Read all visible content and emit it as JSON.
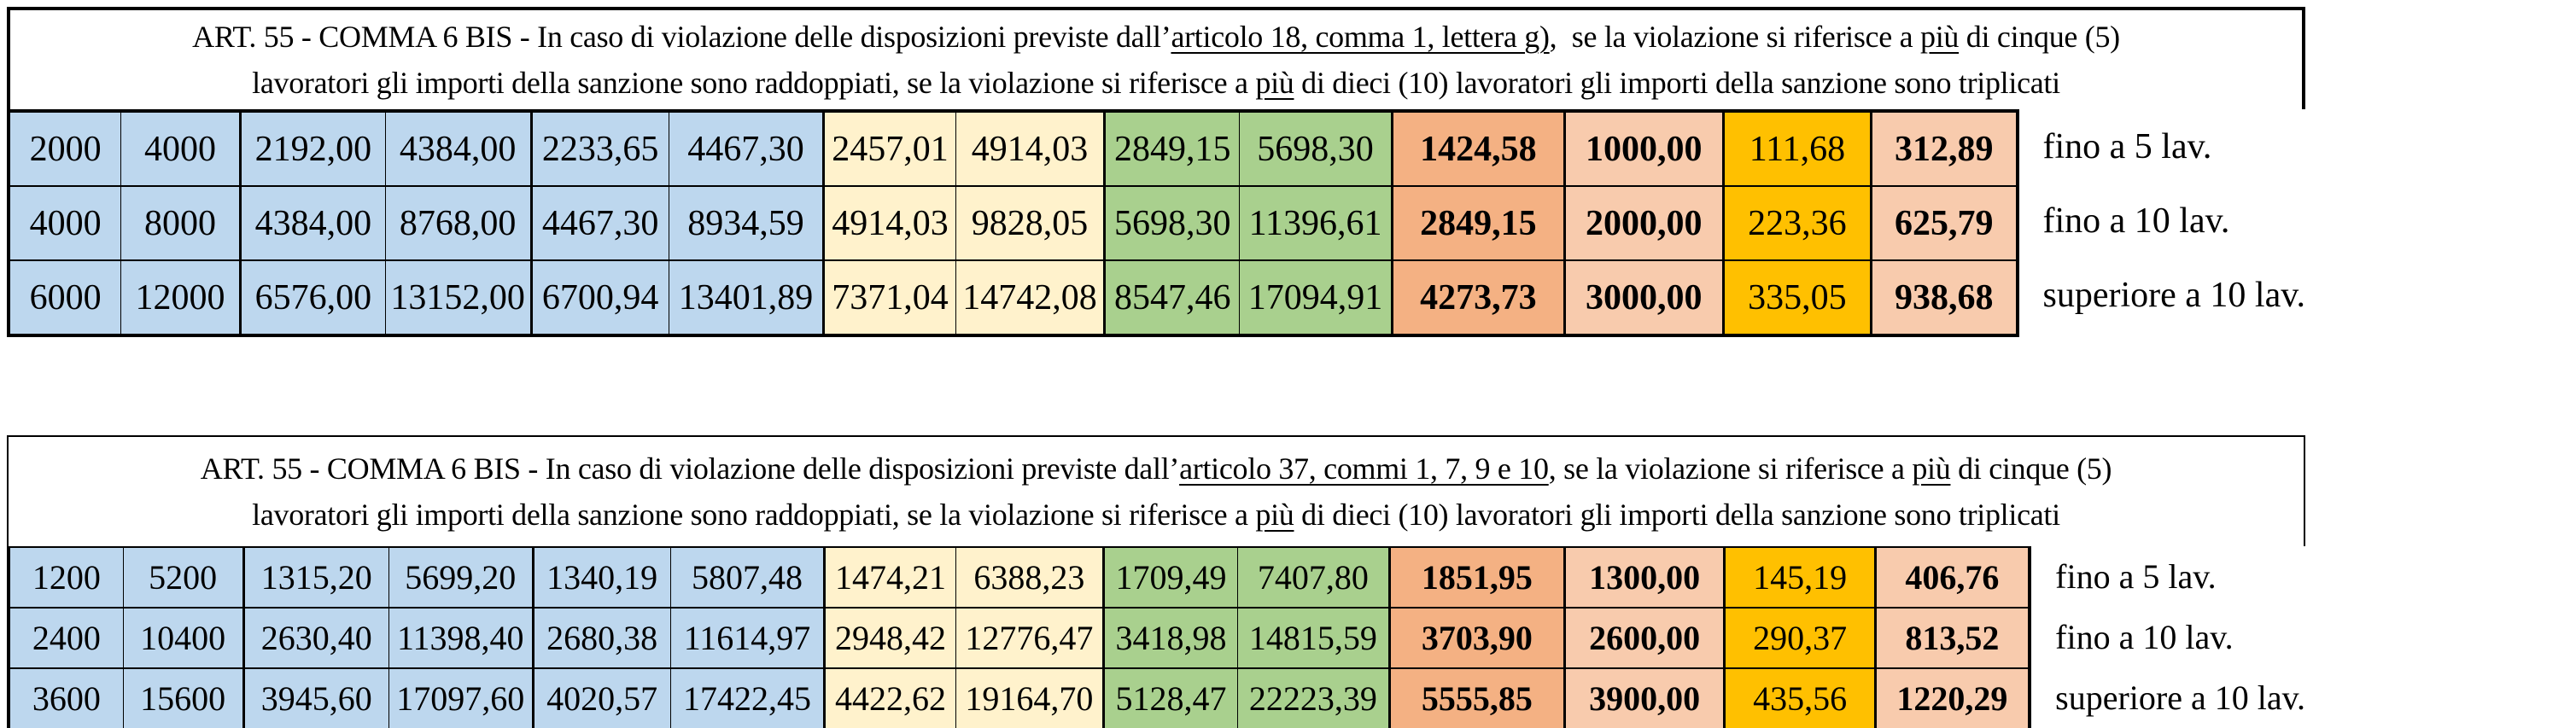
{
  "page": {
    "background": "#FFFFFF"
  },
  "colors": {
    "blue": "#BDD7EE",
    "cream": "#FFF2CC",
    "green": "#A9D08E",
    "orange": "#F4B183",
    "peach": "#F8CBAD",
    "gold": "#FFC000",
    "border": "#000000"
  },
  "column_types": [
    "blue",
    "blue",
    "blue",
    "blue",
    "blue",
    "blue",
    "cream",
    "cream",
    "green",
    "green",
    "orange",
    "peach",
    "gold",
    "peach"
  ],
  "tables": [
    {
      "name": "sanction-table-articolo-18",
      "title_lines": [
        [
          {
            "t": "ART. 55 - COMMA 6 BIS - In caso di violazione delle disposizioni previste dall’"
          },
          {
            "t": "articolo 18, comma 1, lettera g)",
            "u": true
          },
          {
            "t": ",  se la violazione si riferisce a "
          },
          {
            "t": "più",
            "u": true
          },
          {
            "t": " di cinque (5)"
          }
        ],
        [
          {
            "t": "lavoratori gli importi della sanzione sono raddoppiati, se la violazione si riferisce a "
          },
          {
            "t": "più",
            "u": true
          },
          {
            "t": " di dieci (10) lavoratori gli importi della sanzione sono triplicati"
          }
        ]
      ],
      "rows": [
        {
          "cells": [
            "2000",
            "4000",
            "2192,00",
            "4384,00",
            "2233,65",
            "4467,30",
            "2457,01",
            "4914,03",
            "2849,15",
            "5698,30",
            "1424,58",
            "1000,00",
            "111,68",
            "312,89"
          ],
          "label": "fino a 5 lav."
        },
        {
          "cells": [
            "4000",
            "8000",
            "4384,00",
            "8768,00",
            "4467,30",
            "8934,59",
            "4914,03",
            "9828,05",
            "5698,30",
            "11396,61",
            "2849,15",
            "2000,00",
            "223,36",
            "625,79"
          ],
          "label": "fino a 10 lav."
        },
        {
          "cells": [
            "6000",
            "12000",
            "6576,00",
            "13152,00",
            "6700,94",
            "13401,89",
            "7371,04",
            "14742,08",
            "8547,46",
            "17094,91",
            "4273,73",
            "3000,00",
            "335,05",
            "938,68"
          ],
          "label": "superiore a 10 lav."
        }
      ]
    },
    {
      "name": "sanction-table-articolo-37",
      "title_lines": [
        [
          {
            "t": "ART. 55 - COMMA 6 BIS - In caso di violazione delle disposizioni previste dall’"
          },
          {
            "t": "articolo 37, commi 1, 7, 9 e 10",
            "u": true
          },
          {
            "t": ", se la violazione si riferisce a "
          },
          {
            "t": "più",
            "u": true
          },
          {
            "t": " di cinque (5)"
          }
        ],
        [
          {
            "t": "lavoratori gli importi della sanzione sono raddoppiati, se la violazione si riferisce a "
          },
          {
            "t": "più",
            "u": true
          },
          {
            "t": " di dieci (10) lavoratori gli importi della sanzione sono triplicati"
          }
        ]
      ],
      "rows": [
        {
          "cells": [
            "1200",
            "5200",
            "1315,20",
            "5699,20",
            "1340,19",
            "5807,48",
            "1474,21",
            "6388,23",
            "1709,49",
            "7407,80",
            "1851,95",
            "1300,00",
            "145,19",
            "406,76"
          ],
          "label": "fino a 5 lav."
        },
        {
          "cells": [
            "2400",
            "10400",
            "2630,40",
            "11398,40",
            "2680,38",
            "11614,97",
            "2948,42",
            "12776,47",
            "3418,98",
            "14815,59",
            "3703,90",
            "2600,00",
            "290,37",
            "813,52"
          ],
          "label": "fino a 10 lav."
        },
        {
          "cells": [
            "3600",
            "15600",
            "3945,60",
            "17097,60",
            "4020,57",
            "17422,45",
            "4422,62",
            "19164,70",
            "5128,47",
            "22223,39",
            "5555,85",
            "3900,00",
            "435,56",
            "1220,29"
          ],
          "label": "superiore a 10 lav."
        }
      ]
    }
  ]
}
